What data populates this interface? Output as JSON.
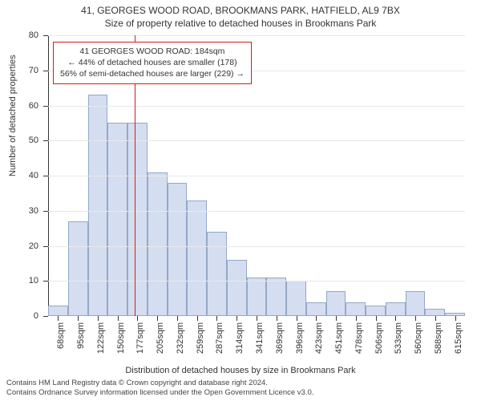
{
  "title_line1": "41, GEORGES WOOD ROAD, BROOKMANS PARK, HATFIELD, AL9 7BX",
  "title_line2": "Size of property relative to detached houses in Brookmans Park",
  "chart": {
    "type": "histogram",
    "y": {
      "label": "Number of detached properties",
      "min": 0,
      "max": 80,
      "ticks": [
        0,
        10,
        20,
        30,
        40,
        50,
        60,
        70,
        80
      ],
      "grid_color": "#e8e8e8",
      "label_fontsize": 11
    },
    "x": {
      "label": "Distribution of detached houses by size in Brookmans Park",
      "tick_labels": [
        "68sqm",
        "95sqm",
        "122sqm",
        "150sqm",
        "177sqm",
        "205sqm",
        "232sqm",
        "259sqm",
        "287sqm",
        "314sqm",
        "341sqm",
        "369sqm",
        "396sqm",
        "423sqm",
        "451sqm",
        "478sqm",
        "506sqm",
        "533sqm",
        "560sqm",
        "588sqm",
        "615sqm"
      ],
      "label_fontsize": 11
    },
    "bars": {
      "values": [
        3,
        27,
        63,
        55,
        55,
        41,
        38,
        33,
        24,
        16,
        11,
        11,
        10,
        4,
        7,
        4,
        3,
        4,
        7,
        2,
        1
      ],
      "fill_color": "#d4def0",
      "border_color": "#94a8c8",
      "width_fraction": 1.0
    },
    "marker": {
      "position_value": 184,
      "range_min": 68,
      "range_max": 629,
      "color": "#d81b1b"
    },
    "annotation": {
      "lines": [
        "41 GEORGES WOOD ROAD: 184sqm",
        "← 44% of detached houses are smaller (178)",
        "56% of semi-detached houses are larger (229) →"
      ],
      "border_color": "#d81b1b",
      "fontsize": 10.5
    },
    "background_color": "#ffffff",
    "axis_color": "#333333"
  },
  "attribution": {
    "line1": "Contains HM Land Registry data © Crown copyright and database right 2024.",
    "line2": "Contains Ordnance Survey information licensed under the Open Government Licence v3.0."
  }
}
